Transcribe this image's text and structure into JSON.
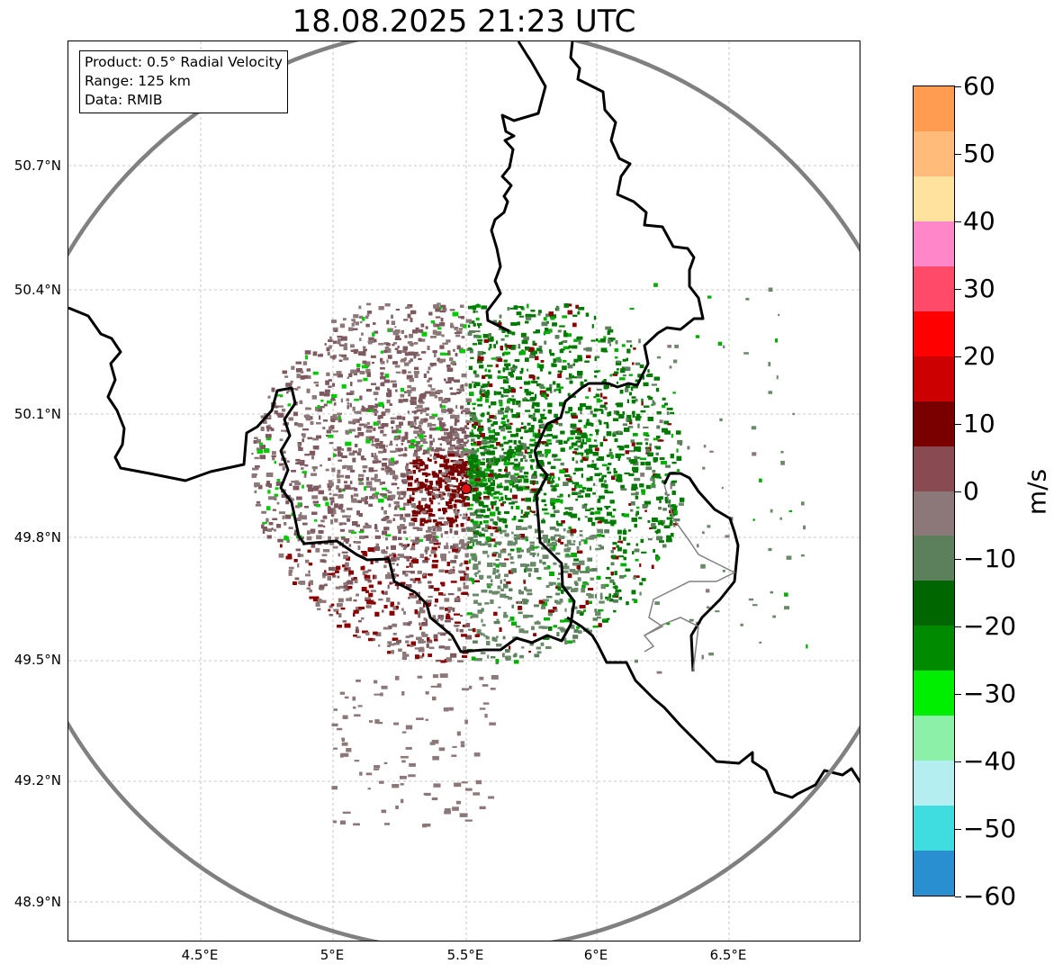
{
  "title": "18.08.2025 21:23 UTC",
  "info": {
    "product": "Product: 0.5° Radial Velocity",
    "range": "Range: 125 km",
    "data": "Data: RMIB"
  },
  "axes": {
    "lat_ticks": [
      "50.7°N",
      "50.4°N",
      "50.1°N",
      "49.8°N",
      "49.5°N",
      "49.2°N",
      "48.9°N"
    ],
    "lon_ticks": [
      "4.5°E",
      "5°E",
      "5.5°E",
      "6°E",
      "6.5°E"
    ]
  },
  "colorbar": {
    "unit": "m/s",
    "ticks": [
      "60",
      "50",
      "40",
      "30",
      "20",
      "10",
      "0",
      "−10",
      "−20",
      "−30",
      "−40",
      "−50",
      "−60"
    ],
    "colors": [
      "#ff9c52",
      "#ffbb7a",
      "#ffe29e",
      "#ff86c8",
      "#ff4a6a",
      "#ff0000",
      "#cc0000",
      "#7a0000",
      "#8a4a52",
      "#8c7878",
      "#5c7f5c",
      "#006600",
      "#008a00",
      "#00ee00",
      "#8cf0a8",
      "#b4eef0",
      "#40dde0",
      "#2a8fd0"
    ]
  },
  "map": {
    "radar_site_color": "#e01010",
    "border_color": "#000000",
    "range_ring_color": "#808080"
  }
}
